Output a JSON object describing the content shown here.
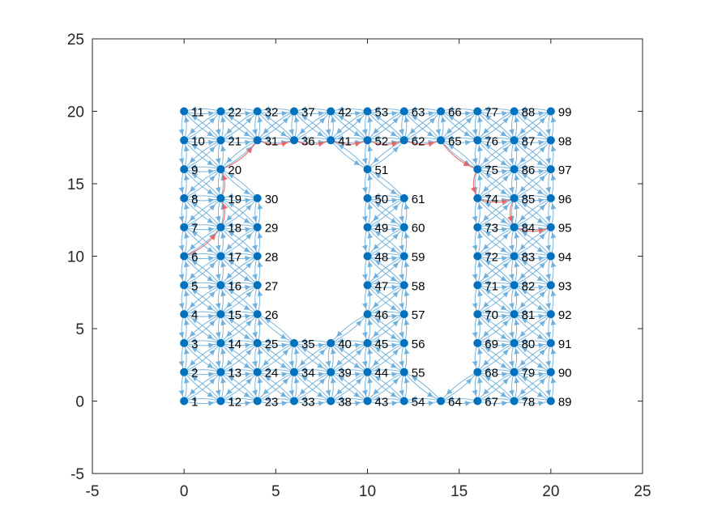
{
  "chart_data": {
    "type": "graph",
    "xlim": [
      -5,
      25
    ],
    "ylim": [
      -5,
      25
    ],
    "xticks": [
      -5,
      0,
      5,
      10,
      15,
      20,
      25
    ],
    "yticks": [
      -5,
      0,
      5,
      10,
      15,
      20,
      25
    ],
    "xtick_labels": [
      "-5",
      "0",
      "5",
      "10",
      "15",
      "20",
      "25"
    ],
    "ytick_labels": [
      "-5",
      "0",
      "5",
      "10",
      "15",
      "20",
      "25"
    ],
    "grid": false,
    "colors": {
      "node": "#0072BD",
      "edge": "#62A8D8",
      "highlight_edge": "#EF5C5C",
      "axis": "#262626"
    },
    "nodes": [
      {
        "id": "1",
        "x": 0,
        "y": 0
      },
      {
        "id": "2",
        "x": 0,
        "y": 2
      },
      {
        "id": "3",
        "x": 0,
        "y": 4
      },
      {
        "id": "4",
        "x": 0,
        "y": 6
      },
      {
        "id": "5",
        "x": 0,
        "y": 8
      },
      {
        "id": "6",
        "x": 0,
        "y": 10
      },
      {
        "id": "7",
        "x": 0,
        "y": 12
      },
      {
        "id": "8",
        "x": 0,
        "y": 14
      },
      {
        "id": "9",
        "x": 0,
        "y": 16
      },
      {
        "id": "10",
        "x": 0,
        "y": 18
      },
      {
        "id": "11",
        "x": 0,
        "y": 20
      },
      {
        "id": "12",
        "x": 2,
        "y": 0
      },
      {
        "id": "13",
        "x": 2,
        "y": 2
      },
      {
        "id": "14",
        "x": 2,
        "y": 4
      },
      {
        "id": "15",
        "x": 2,
        "y": 6
      },
      {
        "id": "16",
        "x": 2,
        "y": 8
      },
      {
        "id": "17",
        "x": 2,
        "y": 10
      },
      {
        "id": "18",
        "x": 2,
        "y": 12
      },
      {
        "id": "19",
        "x": 2,
        "y": 14
      },
      {
        "id": "20",
        "x": 2,
        "y": 16
      },
      {
        "id": "21",
        "x": 2,
        "y": 18
      },
      {
        "id": "22",
        "x": 2,
        "y": 20
      },
      {
        "id": "23",
        "x": 4,
        "y": 0
      },
      {
        "id": "24",
        "x": 4,
        "y": 2
      },
      {
        "id": "25",
        "x": 4,
        "y": 4
      },
      {
        "id": "26",
        "x": 4,
        "y": 6
      },
      {
        "id": "27",
        "x": 4,
        "y": 8
      },
      {
        "id": "28",
        "x": 4,
        "y": 10
      },
      {
        "id": "29",
        "x": 4,
        "y": 12
      },
      {
        "id": "30",
        "x": 4,
        "y": 14
      },
      {
        "id": "31",
        "x": 4,
        "y": 18
      },
      {
        "id": "32",
        "x": 4,
        "y": 20
      },
      {
        "id": "33",
        "x": 6,
        "y": 0
      },
      {
        "id": "34",
        "x": 6,
        "y": 2
      },
      {
        "id": "35",
        "x": 6,
        "y": 4
      },
      {
        "id": "36",
        "x": 6,
        "y": 18
      },
      {
        "id": "37",
        "x": 6,
        "y": 20
      },
      {
        "id": "38",
        "x": 8,
        "y": 0
      },
      {
        "id": "39",
        "x": 8,
        "y": 2
      },
      {
        "id": "40",
        "x": 8,
        "y": 4
      },
      {
        "id": "41",
        "x": 8,
        "y": 18
      },
      {
        "id": "42",
        "x": 8,
        "y": 20
      },
      {
        "id": "43",
        "x": 10,
        "y": 0
      },
      {
        "id": "44",
        "x": 10,
        "y": 2
      },
      {
        "id": "45",
        "x": 10,
        "y": 4
      },
      {
        "id": "46",
        "x": 10,
        "y": 6
      },
      {
        "id": "47",
        "x": 10,
        "y": 8
      },
      {
        "id": "48",
        "x": 10,
        "y": 10
      },
      {
        "id": "49",
        "x": 10,
        "y": 12
      },
      {
        "id": "50",
        "x": 10,
        "y": 14
      },
      {
        "id": "51",
        "x": 10,
        "y": 16
      },
      {
        "id": "52",
        "x": 10,
        "y": 18
      },
      {
        "id": "53",
        "x": 10,
        "y": 20
      },
      {
        "id": "54",
        "x": 12,
        "y": 0
      },
      {
        "id": "55",
        "x": 12,
        "y": 2
      },
      {
        "id": "56",
        "x": 12,
        "y": 4
      },
      {
        "id": "57",
        "x": 12,
        "y": 6
      },
      {
        "id": "58",
        "x": 12,
        "y": 8
      },
      {
        "id": "59",
        "x": 12,
        "y": 10
      },
      {
        "id": "60",
        "x": 12,
        "y": 12
      },
      {
        "id": "61",
        "x": 12,
        "y": 14
      },
      {
        "id": "62",
        "x": 12,
        "y": 18
      },
      {
        "id": "63",
        "x": 12,
        "y": 20
      },
      {
        "id": "64",
        "x": 14,
        "y": 0
      },
      {
        "id": "65",
        "x": 14,
        "y": 18
      },
      {
        "id": "66",
        "x": 14,
        "y": 20
      },
      {
        "id": "67",
        "x": 16,
        "y": 0
      },
      {
        "id": "68",
        "x": 16,
        "y": 2
      },
      {
        "id": "69",
        "x": 16,
        "y": 4
      },
      {
        "id": "70",
        "x": 16,
        "y": 6
      },
      {
        "id": "71",
        "x": 16,
        "y": 8
      },
      {
        "id": "72",
        "x": 16,
        "y": 10
      },
      {
        "id": "73",
        "x": 16,
        "y": 12
      },
      {
        "id": "74",
        "x": 16,
        "y": 14
      },
      {
        "id": "75",
        "x": 16,
        "y": 16
      },
      {
        "id": "76",
        "x": 16,
        "y": 18
      },
      {
        "id": "77",
        "x": 16,
        "y": 20
      },
      {
        "id": "78",
        "x": 18,
        "y": 0
      },
      {
        "id": "79",
        "x": 18,
        "y": 2
      },
      {
        "id": "80",
        "x": 18,
        "y": 4
      },
      {
        "id": "81",
        "x": 18,
        "y": 6
      },
      {
        "id": "82",
        "x": 18,
        "y": 8
      },
      {
        "id": "83",
        "x": 18,
        "y": 10
      },
      {
        "id": "84",
        "x": 18,
        "y": 12
      },
      {
        "id": "85",
        "x": 18,
        "y": 14
      },
      {
        "id": "86",
        "x": 18,
        "y": 16
      },
      {
        "id": "87",
        "x": 18,
        "y": 18
      },
      {
        "id": "88",
        "x": 18,
        "y": 20
      },
      {
        "id": "89",
        "x": 20,
        "y": 0
      },
      {
        "id": "90",
        "x": 20,
        "y": 2
      },
      {
        "id": "91",
        "x": 20,
        "y": 4
      },
      {
        "id": "92",
        "x": 20,
        "y": 6
      },
      {
        "id": "93",
        "x": 20,
        "y": 8
      },
      {
        "id": "94",
        "x": 20,
        "y": 10
      },
      {
        "id": "95",
        "x": 20,
        "y": 12
      },
      {
        "id": "96",
        "x": 20,
        "y": 14
      },
      {
        "id": "97",
        "x": 20,
        "y": 16
      },
      {
        "id": "98",
        "x": 20,
        "y": 18
      },
      {
        "id": "99",
        "x": 20,
        "y": 20
      }
    ],
    "highlighted_path": [
      "6",
      "18",
      "19",
      "20",
      "31",
      "36",
      "41",
      "52",
      "62",
      "65",
      "75",
      "74",
      "85",
      "84",
      "95"
    ]
  }
}
